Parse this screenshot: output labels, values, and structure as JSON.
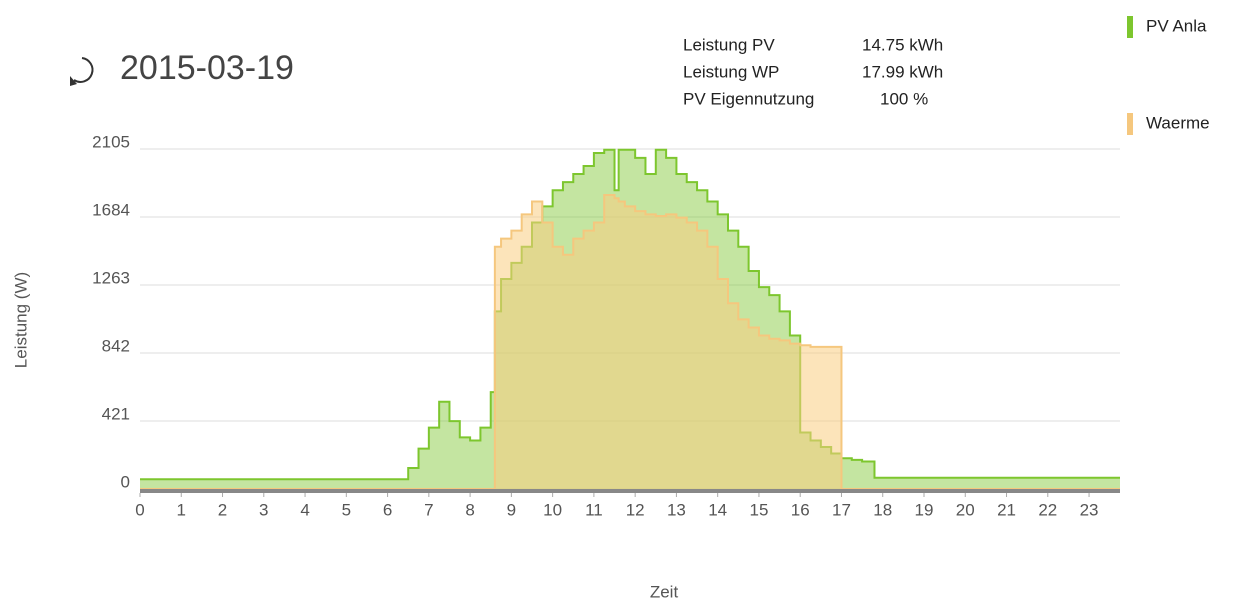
{
  "chart_data": {
    "type": "step-area",
    "title": "2015-03-19",
    "info": [
      {
        "label": "Leistung PV",
        "value": "14.75 kWh"
      },
      {
        "label": "Leistung WP",
        "value": "17.99 kWh"
      },
      {
        "label": "PV Eigennutzung",
        "value": "100 %"
      }
    ],
    "x_label": "Zeit",
    "y_label": "Leistung (W)",
    "x": [
      0,
      6.5,
      6.75,
      7,
      7.25,
      7.5,
      7.75,
      8,
      8.25,
      8.5,
      8.6,
      8.75,
      9,
      9.25,
      9.5,
      9.75,
      10,
      10.25,
      10.5,
      10.75,
      11,
      11.25,
      11.5,
      11.6,
      11.75,
      12,
      12.25,
      12.5,
      12.75,
      13,
      13.25,
      13.5,
      13.75,
      14,
      14.25,
      14.5,
      14.75,
      15,
      15.25,
      15.5,
      15.75,
      16,
      16.25,
      16.5,
      16.75,
      17,
      17.25,
      17.5,
      17.8,
      23.75
    ],
    "series": [
      {
        "name": "PV Anla",
        "color": "#7dc62e",
        "fill": "rgba(125,198,46,0.45)",
        "values": [
          60,
          130,
          250,
          380,
          540,
          420,
          320,
          300,
          380,
          600,
          1100,
          1300,
          1400,
          1500,
          1650,
          1750,
          1850,
          1900,
          1950,
          2000,
          2080,
          2100,
          1850,
          2100,
          2100,
          2050,
          1950,
          2100,
          2050,
          1950,
          1900,
          1850,
          1780,
          1700,
          1600,
          1500,
          1350,
          1250,
          1200,
          1100,
          950,
          350,
          300,
          260,
          220,
          190,
          180,
          170,
          70,
          70
        ]
      },
      {
        "name": "Waerme",
        "color": "#f5c77e",
        "fill": "rgba(250,205,130,0.55)",
        "values": [
          0,
          0,
          0,
          0,
          0,
          0,
          0,
          0,
          0,
          0,
          1500,
          1550,
          1600,
          1700,
          1780,
          1650,
          1500,
          1450,
          1550,
          1600,
          1650,
          1820,
          1800,
          1780,
          1750,
          1720,
          1700,
          1690,
          1700,
          1680,
          1650,
          1600,
          1500,
          1300,
          1150,
          1050,
          1000,
          950,
          930,
          920,
          900,
          890,
          880,
          880,
          880,
          0,
          0,
          0,
          0,
          0
        ]
      }
    ],
    "xlim": [
      0,
      23.75
    ],
    "ylim": [
      0,
      2105
    ],
    "xticks": [
      0,
      1,
      2,
      3,
      4,
      5,
      6,
      7,
      8,
      9,
      10,
      11,
      12,
      13,
      14,
      15,
      16,
      17,
      18,
      19,
      20,
      21,
      22,
      23
    ],
    "yticks": [
      0,
      421,
      842,
      1263,
      1684,
      2105
    ],
    "grid": true
  }
}
